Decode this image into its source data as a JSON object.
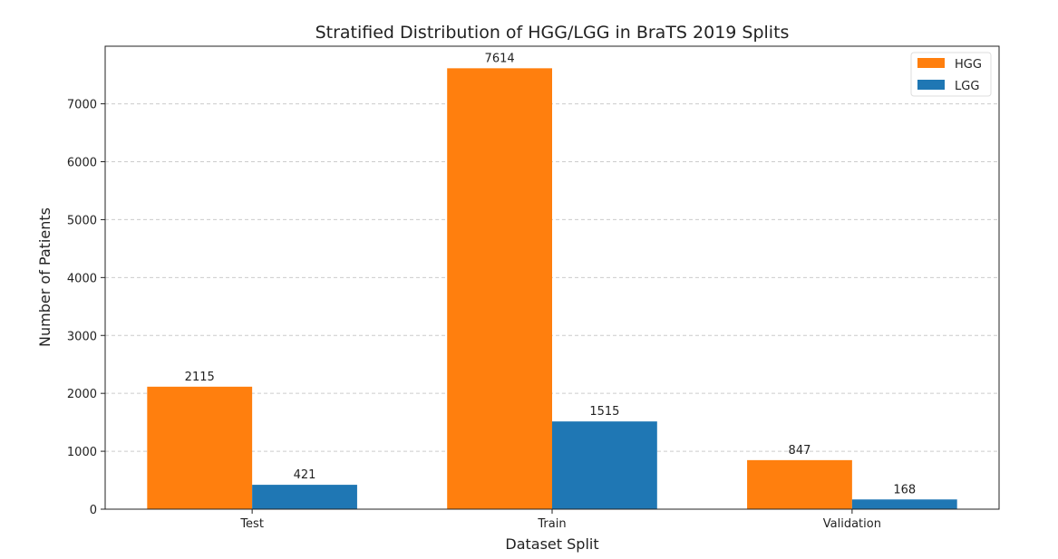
{
  "chart_data": {
    "type": "bar",
    "title": "Stratified Distribution of HGG/LGG in BraTS 2019 Splits",
    "xlabel": "Dataset Split",
    "ylabel": "Number of Patients",
    "categories": [
      "Test",
      "Train",
      "Validation"
    ],
    "series": [
      {
        "name": "HGG",
        "values": [
          2115,
          7614,
          847
        ],
        "color": "#ff7f0e"
      },
      {
        "name": "LGG",
        "values": [
          421,
          1515,
          168
        ],
        "color": "#1f77b4"
      }
    ],
    "ylim": [
      0,
      7995
    ],
    "yticks": [
      0,
      1000,
      2000,
      3000,
      4000,
      5000,
      6000,
      7000
    ],
    "grid": "horizontal dashed",
    "legend": "top-right"
  }
}
